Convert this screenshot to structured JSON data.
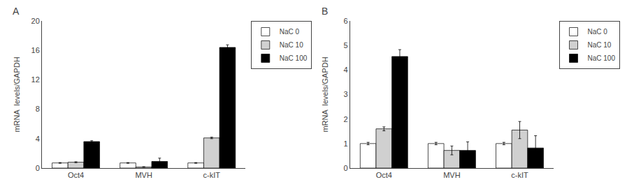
{
  "chart_data": [
    {
      "type": "bar",
      "title": "A",
      "categories": [
        "Oct4",
        "MVH",
        "c-kIT"
      ],
      "series": [
        {
          "name": "NaC 0",
          "color": "white",
          "values": [
            0.7,
            0.7,
            0.7
          ],
          "errors": [
            0.05,
            0.05,
            0.05
          ]
        },
        {
          "name": "NaC 10",
          "color": "#d0d0d0",
          "values": [
            0.8,
            0.15,
            4.1
          ],
          "errors": [
            0.06,
            0.04,
            0.1
          ]
        },
        {
          "name": "NaC 100",
          "color": "black",
          "values": [
            3.6,
            0.9,
            16.4
          ],
          "errors": [
            0.12,
            0.45,
            0.35
          ]
        }
      ],
      "ylabel": "mRNA  levels/GAPDH",
      "ylim": [
        0,
        20
      ],
      "yticks": [
        0,
        4,
        8,
        12,
        16,
        20
      ],
      "legend": "right",
      "grid": false
    },
    {
      "type": "bar",
      "title": "B",
      "categories": [
        "Oct4",
        "MVH",
        "c-kIT"
      ],
      "series": [
        {
          "name": "NaC 0",
          "color": "white",
          "values": [
            1.0,
            1.0,
            1.0
          ],
          "errors": [
            0.05,
            0.05,
            0.05
          ]
        },
        {
          "name": "NaC 10",
          "color": "#d0d0d0",
          "values": [
            1.6,
            0.72,
            1.55
          ],
          "errors": [
            0.08,
            0.18,
            0.35
          ]
        },
        {
          "name": "NaC 100",
          "color": "black",
          "values": [
            4.55,
            0.72,
            0.82
          ],
          "errors": [
            0.28,
            0.35,
            0.5
          ]
        }
      ],
      "ylabel": "mRNA  levels/GAPDH",
      "ylim": [
        0,
        6
      ],
      "yticks": [
        0,
        1,
        2,
        3,
        4,
        5,
        6
      ],
      "legend": "right",
      "grid": false
    }
  ]
}
